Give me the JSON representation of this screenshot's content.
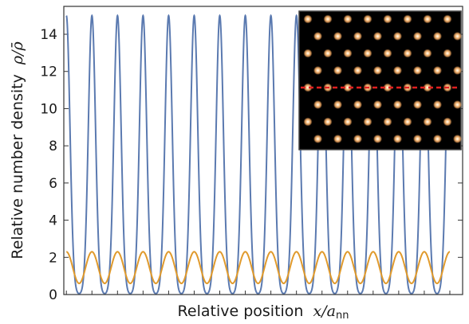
{
  "chart_data": {
    "type": "line",
    "title": "",
    "xlabel": "Relative position",
    "xlabel_math": "x/a",
    "xlabel_math_sub": "nn",
    "ylabel": "Relative number density",
    "ylabel_math": "ρ/ρ̄",
    "ylim": [
      0,
      15.5
    ],
    "yticks": [
      "0",
      "2",
      "4",
      "6",
      "8",
      "10",
      "12",
      "14"
    ],
    "yticks_values": [
      0,
      2,
      4,
      6,
      8,
      10,
      12,
      14
    ],
    "xlim": [
      -0.1,
      15.5
    ],
    "xticks_labelled": false,
    "grid": false,
    "legend": "none",
    "series": [
      {
        "color": "#5b7ab0",
        "peak_positions": [
          0,
          1,
          2,
          3,
          4,
          5,
          6,
          7,
          8,
          9,
          10,
          11,
          12,
          13,
          14,
          15
        ],
        "peak_value": 15,
        "min_value": 0,
        "description_shape": "narrow periodic peaks"
      },
      {
        "color": "#e09a2c",
        "peak_positions": [
          0,
          1,
          2,
          3,
          4,
          5,
          6,
          7,
          8,
          9,
          10,
          11,
          12,
          13,
          14,
          15
        ],
        "peak_value": 2.3,
        "min_value": 0.6,
        "description_shape": "smooth periodic oscillation"
      }
    ],
    "inset": {
      "background": "#000000",
      "spot_color": "#f4a860",
      "line_color": "#e02020",
      "lattice": "triangular"
    }
  }
}
